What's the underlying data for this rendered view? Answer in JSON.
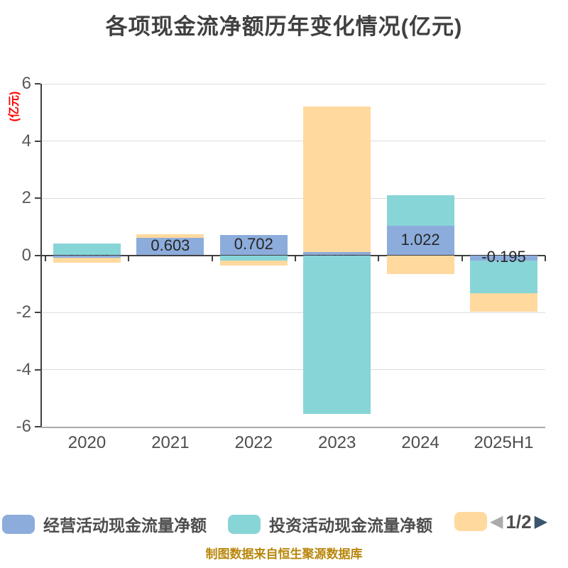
{
  "title": "各项现金流净额历年变化情况(亿元)",
  "y_axis_label": "(亿元)",
  "chart_data": {
    "type": "bar",
    "stacked": true,
    "title": "各项现金流净额历年变化情况(亿元)",
    "ylabel": "(亿元)",
    "categories": [
      "2020",
      "2021",
      "2022",
      "2023",
      "2024",
      "2025H1"
    ],
    "series": [
      {
        "name": "经营活动现金流量净额",
        "color": "#8CACDB",
        "values": [
          -0.079,
          0.603,
          0.702,
          0.104,
          1.022,
          -0.195
        ]
      },
      {
        "name": "投资活动现金流量净额",
        "color": "#88D5D8",
        "values": [
          0.4,
          0,
          -0.18,
          -5.55,
          1.08,
          -1.14
        ]
      },
      {
        "name": "",
        "color": "#FFD99E",
        "values": [
          -0.17,
          0.14,
          -0.19,
          5.1,
          -0.65,
          -0.63
        ]
      }
    ],
    "bar_labels": {
      "series_index": 0,
      "values": [
        "-0.079",
        "0.603",
        "0.702",
        "0.104",
        "1.022",
        "-0.195"
      ]
    },
    "ylim": [
      -6,
      6
    ],
    "yticks": [
      6,
      4,
      2,
      0,
      -2,
      -4,
      -6
    ],
    "grid": true,
    "legend_position": "bottom"
  },
  "legend": {
    "items": [
      {
        "label": "经营活动现金流量净额",
        "color": "#8CACDB"
      },
      {
        "label": "投资活动现金流量净额",
        "color": "#88D5D8"
      },
      {
        "label": "",
        "color": "#FFD99E"
      }
    ]
  },
  "pagination": {
    "current_page": "1/2",
    "prev_icon": "◀",
    "next_icon": "▶"
  },
  "footer": {
    "source_text": "制图数据来自恒生聚源数据库"
  },
  "colors": {
    "title_text": "#404040",
    "axis_text": "#595959",
    "axis_line": "#404040",
    "grid_line": "#dcdcdc",
    "bottom_line": "#aaaaaa",
    "bar_label_text": "#262626",
    "y_label_red": "#ff0000",
    "legend_text": "#4d4d4d",
    "pag_prev": "#ababab",
    "pag_next": "#3d566e",
    "footer_text": "#b8860b"
  }
}
